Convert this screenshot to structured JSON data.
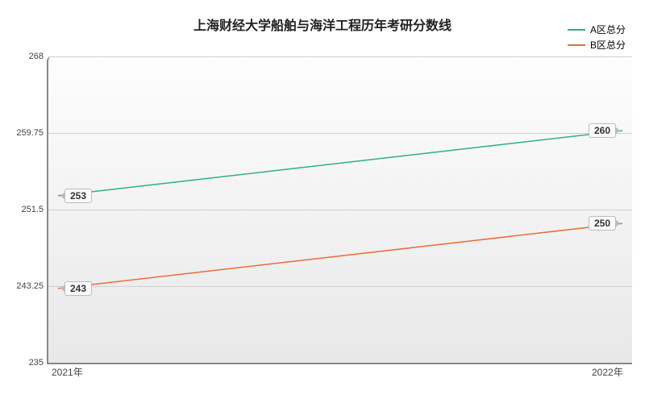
{
  "title": {
    "text": "上海财经大学船舶与海洋工程历年考研分数线",
    "fontsize": 16
  },
  "legend": {
    "items": [
      {
        "label": "A区总分",
        "color": "#2fae8f"
      },
      {
        "label": "B区总分",
        "color": "#e86e3a"
      }
    ]
  },
  "x": {
    "categories": [
      "2021年",
      "2022年"
    ]
  },
  "y": {
    "min": 235,
    "max": 268,
    "step": 8.25,
    "labels": [
      "235",
      "243.25",
      "251.5",
      "259.75",
      "268"
    ]
  },
  "series": [
    {
      "name": "A区总分",
      "color": "#2fae8f",
      "values": [
        253,
        260
      ],
      "width": 1.5
    },
    {
      "name": "B区总分",
      "color": "#e86e3a",
      "values": [
        243,
        250
      ],
      "width": 1.5
    }
  ],
  "plot": {
    "grid_color": "#cfcfcf",
    "bg_from": "#e8e8e8",
    "bg_to": "#fdfdfd"
  }
}
